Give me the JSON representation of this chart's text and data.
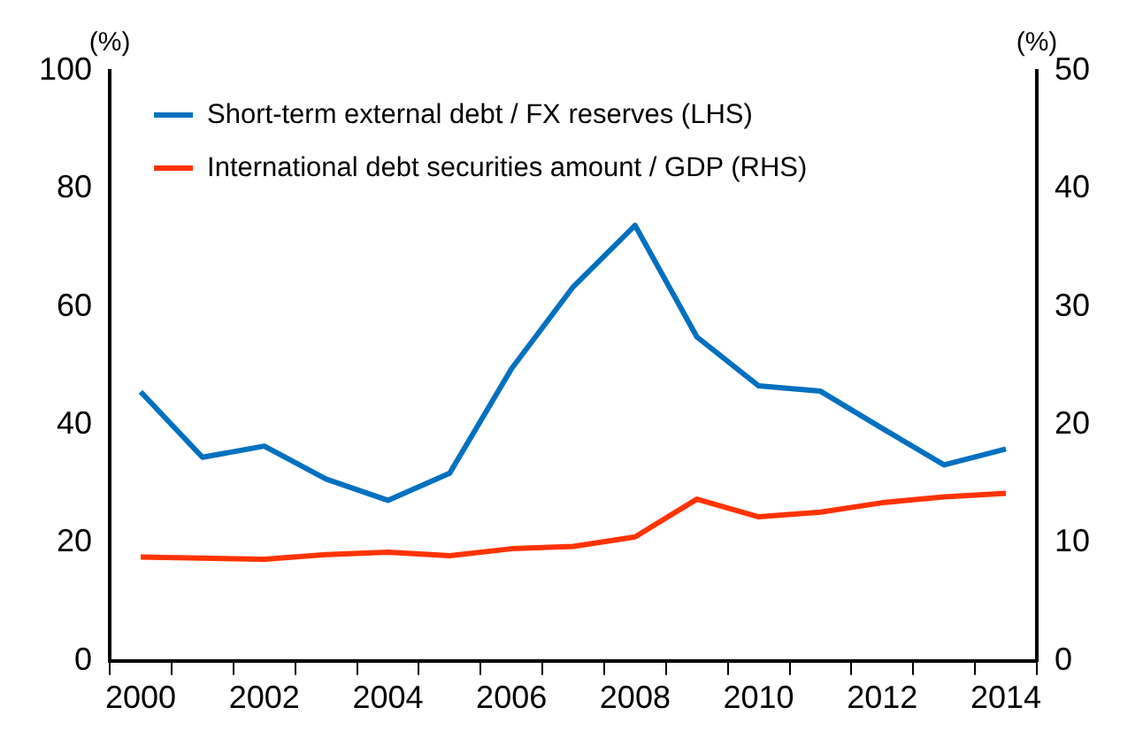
{
  "chart_data": {
    "type": "line",
    "ylabel": "(%)",
    "y2label": "(%)",
    "categories": [
      "2000",
      null,
      "2002",
      null,
      "2004",
      null,
      "2006",
      null,
      "2008",
      null,
      "2010",
      null,
      "2012",
      null,
      "2014"
    ],
    "series": [
      {
        "name": "Short-term external debt / FX reserves (LHS)",
        "color": "#0070c0",
        "values": [
          45.6,
          34.5,
          36.4,
          30.8,
          27.2,
          31.8,
          49.5,
          63.4,
          73.8,
          54.9,
          46.6,
          45.7,
          39.4,
          33.2,
          35.9
        ]
      },
      {
        "name": "International debt securities amount / GDP (RHS)",
        "color": "#ff3300",
        "axis": "y2",
        "values": [
          8.8,
          8.7,
          8.6,
          9.0,
          9.2,
          8.9,
          9.5,
          9.7,
          10.5,
          13.7,
          12.2,
          12.6,
          13.4,
          13.9,
          14.2
        ]
      }
    ],
    "ylim": [
      0,
      100
    ],
    "yticks": [
      0,
      20,
      40,
      60,
      80,
      100
    ],
    "y2lim": [
      0,
      50
    ],
    "y2ticks": [
      0,
      10,
      20,
      30,
      40,
      50
    ],
    "grid": false,
    "legend": "top left",
    "marker": "none",
    "line_style": "solid"
  }
}
